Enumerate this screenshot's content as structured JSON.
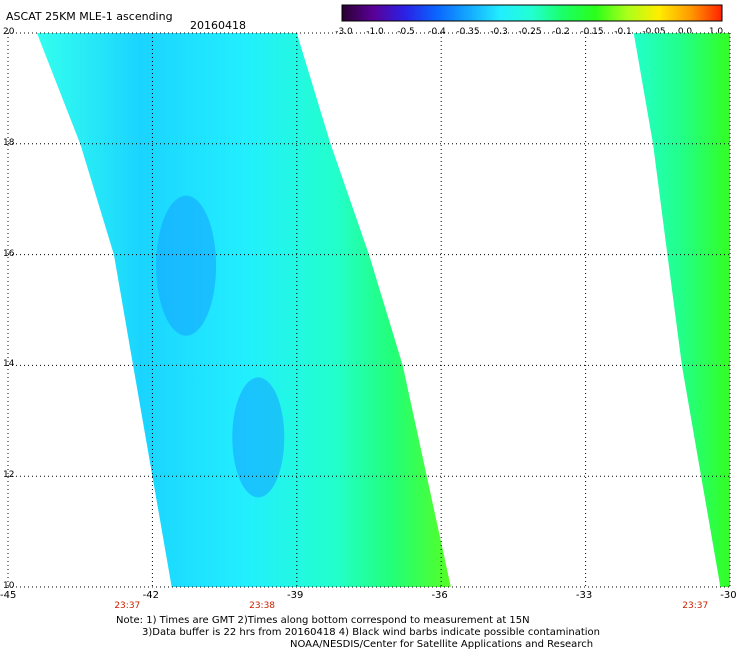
{
  "header": {
    "title": "ASCAT 25KM MLE-1 ascending",
    "date": "20160418"
  },
  "colorbar": {
    "labels": [
      "-3.0",
      "-1.0",
      "-0.5",
      "-0.4",
      "-0.35",
      "-0.3",
      "-0.25",
      "-0.2",
      "-0.15",
      "-0.1",
      "-0.05",
      "0.0",
      "1.0"
    ],
    "colors": [
      "#2a0030",
      "#5a0098",
      "#2a22e6",
      "#0a66ff",
      "#14a8ff",
      "#22eeff",
      "#22ffd2",
      "#1aff66",
      "#2aff1a",
      "#aaff1a",
      "#ffee00",
      "#ff9a00",
      "#ff2200"
    ]
  },
  "axes": {
    "lat_labels": [
      "20",
      "18",
      "16",
      "14",
      "12",
      "10"
    ],
    "lat_values": [
      20,
      18,
      16,
      14,
      12,
      10
    ],
    "lon_labels": [
      "-45",
      "-42",
      "-39",
      "-36",
      "-33",
      "-30"
    ],
    "lon_values": [
      -45,
      -42,
      -39,
      -36,
      -33,
      -30
    ],
    "lat_range": [
      10,
      20
    ],
    "lon_range": [
      -45,
      -30
    ],
    "grid": true
  },
  "time_labels": [
    {
      "text": "23:37",
      "lon": -42.5
    },
    {
      "text": "23:38",
      "lon": -39.7
    },
    {
      "text": "23:37",
      "lon": -30.7
    }
  ],
  "notes": [
    "Note: 1) Times are GMT 2)Times along bottom correspond to measurement at 15N",
    "3)Data buffer is 22 hrs from 20160418 4) Black wind barbs indicate possible contamination",
    "NOAA/NESDIS/Center for Satellite Applications and Research"
  ],
  "chart_data": {
    "type": "heatmap",
    "title": "ASCAT 25KM MLE-1 ascending",
    "subtitle": "20160418",
    "xlabel": "",
    "ylabel": "",
    "xlim": [
      -45,
      -30
    ],
    "ylim": [
      10,
      20
    ],
    "swaths": [
      {
        "name": "",
        "left_edge": [
          [
            -44.4,
            20
          ],
          [
            -43.5,
            18
          ],
          [
            -42.8,
            16
          ],
          [
            -42.4,
            14
          ],
          [
            -42.0,
            12
          ],
          [
            -41.6,
            10
          ]
        ],
        "right_edge": [
          [
            -39.0,
            20
          ],
          [
            -38.3,
            18
          ],
          [
            -37.5,
            16
          ],
          [
            -36.8,
            14
          ],
          [
            -36.3,
            12
          ],
          [
            -35.8,
            10
          ]
        ],
        "typical_value_range": [
          -0.35,
          -0.15
        ],
        "min_value": -0.4,
        "max_value": -0.05
      },
      {
        "name": "",
        "left_edge": [
          [
            -32.0,
            20
          ],
          [
            -31.6,
            18
          ],
          [
            -31.3,
            16
          ],
          [
            -31.0,
            14
          ],
          [
            -30.6,
            12
          ],
          [
            -30.2,
            10
          ]
        ],
        "right_edge": [
          [
            -30,
            20
          ],
          [
            -30,
            10
          ]
        ],
        "typical_value_range": [
          -0.3,
          -0.15
        ],
        "min_value": -0.3,
        "max_value": -0.05
      }
    ]
  }
}
